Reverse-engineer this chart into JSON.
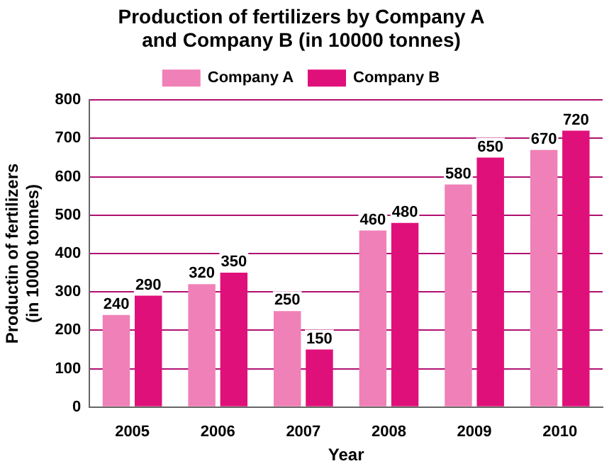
{
  "chart_data": {
    "type": "bar",
    "title": "Production of fertilizers by Company A\nand Company B (in 10000 tonnes)",
    "xlabel": "Year",
    "ylabel": "Productin of fertilizers\n(in 10000 tonnes)",
    "categories": [
      "2005",
      "2006",
      "2007",
      "2008",
      "2009",
      "2010"
    ],
    "series": [
      {
        "name": "Company A",
        "color": "#f080b8",
        "values": [
          240,
          320,
          250,
          460,
          580,
          670
        ]
      },
      {
        "name": "Company B",
        "color": "#e0107a",
        "values": [
          290,
          350,
          150,
          480,
          650,
          720
        ]
      }
    ],
    "ylim": [
      0,
      800
    ],
    "yticks": [
      0,
      100,
      200,
      300,
      400,
      500,
      600,
      700,
      800
    ],
    "grid": "y",
    "legend": "top",
    "data_labels": true
  }
}
